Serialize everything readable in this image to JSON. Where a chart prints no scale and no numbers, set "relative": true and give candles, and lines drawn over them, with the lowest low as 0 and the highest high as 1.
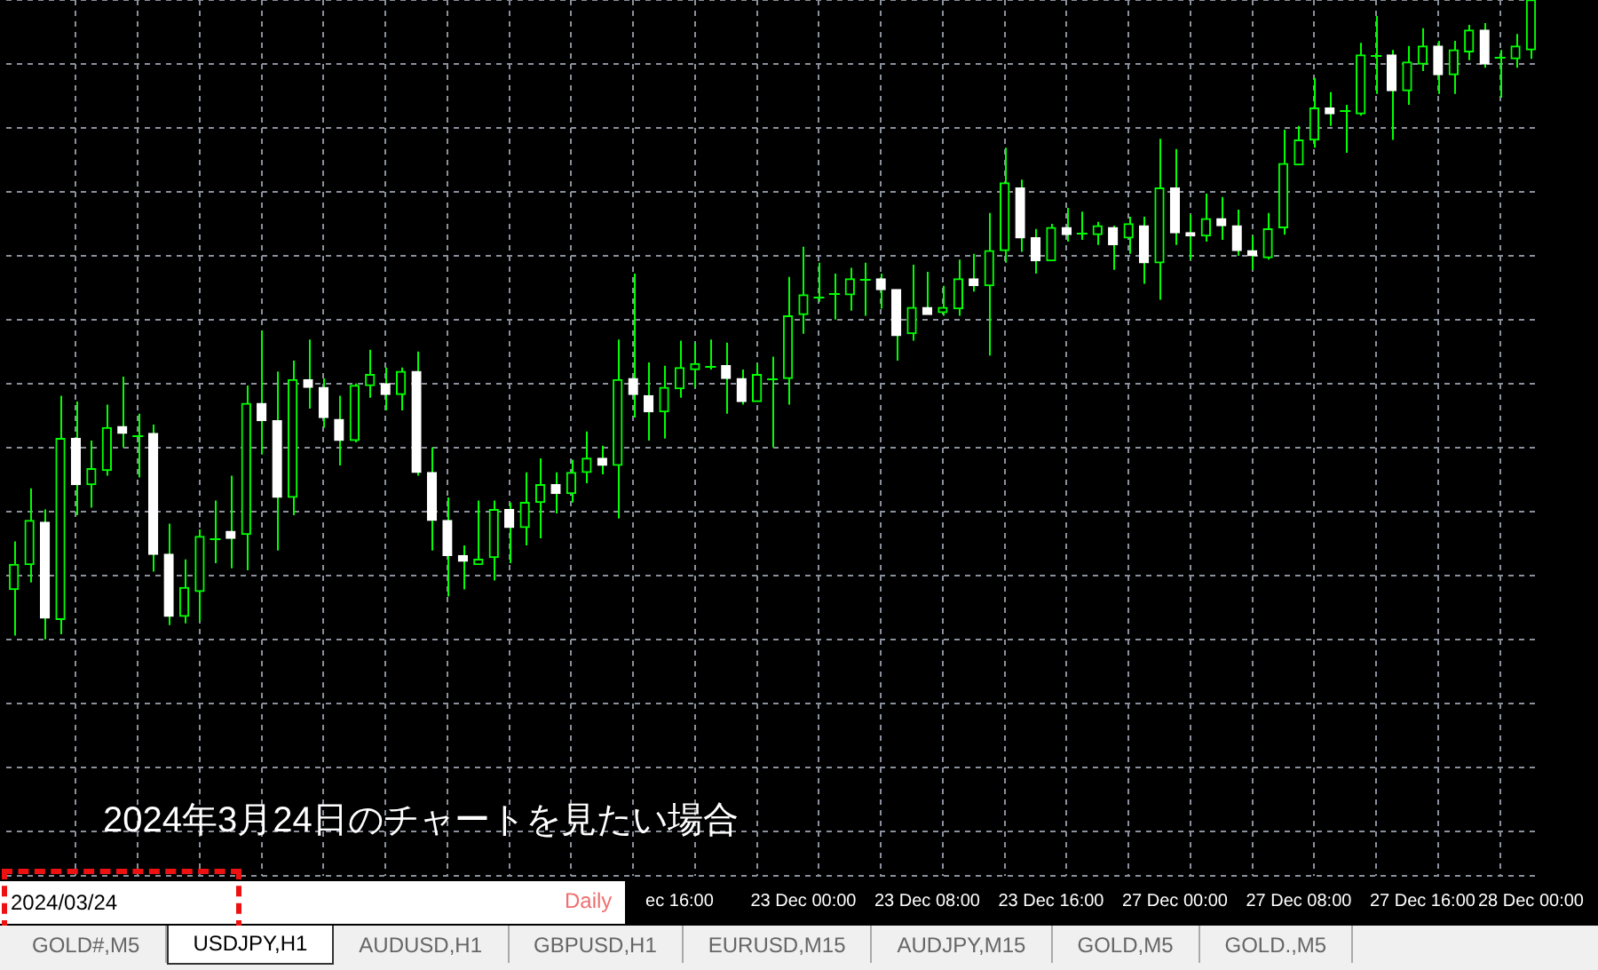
{
  "chart_data": {
    "type": "candlestick",
    "relative": true,
    "color": "#00ff00",
    "grid": true,
    "tick_labels": "x",
    "colors": [
      "#00ff00",
      "#00ff00",
      "#ffffff",
      "#00ff00",
      "#ffffff",
      "#00ff00",
      "#00ff00",
      "#ffffff",
      "#00ff00",
      "#ffffff",
      "#ffffff",
      "#00ff00",
      "#00ff00",
      "#00ff00",
      "#ffffff",
      "#00ff00",
      "#ffffff",
      "#ffffff",
      "#00ff00",
      "#ffffff",
      "#ffffff",
      "#ffffff",
      "#00ff00",
      "#00ff00",
      "#ffffff",
      "#00ff00",
      "#ffffff",
      "#ffffff",
      "#ffffff",
      "#ffffff",
      "#00ff00",
      "#00ff00",
      "#ffffff",
      "#00ff00",
      "#00ff00",
      "#ffffff",
      "#00ff00",
      "#00ff00",
      "#ffffff",
      "#00ff00",
      "#ffffff",
      "#ffffff",
      "#00ff00",
      "#00ff00",
      "#00ff00",
      "#00ff00",
      "#ffffff",
      "#ffffff",
      "#00ff00",
      "#00ff00",
      "#00ff00",
      "#00ff00",
      "#00ff00",
      "#00ff00",
      "#00ff00",
      "#00ff00",
      "#ffffff",
      "#ffffff",
      "#00ff00",
      "#ffffff",
      "#00ff00",
      "#00ff00",
      "#ffffff",
      "#00ff00",
      "#00ff00",
      "#ffffff",
      "#ffffff",
      "#00ff00",
      "#ffffff",
      "#00ff00",
      "#00ff00",
      "#ffffff",
      "#00ff00",
      "#ffffff",
      "#00ff00",
      "#ffffff",
      "#ffffff",
      "#00ff00",
      "#ffffff",
      "#ffffff",
      "#ffffff",
      "#00ff00",
      "#00ff00",
      "#00ff00",
      "#00ff00",
      "#ffffff",
      "#00ff00",
      "#00ff00",
      "#00ff00",
      "#ffffff",
      "#00ff00",
      "#00ff00",
      "#ffffff",
      "#00ff00",
      "#00ff00",
      "#ffffff",
      "#00ff00",
      "#00ff00",
      "#00ff00"
    ],
    "categories": [
      null,
      null,
      null,
      null,
      null,
      null,
      null,
      null,
      null,
      null,
      null,
      null,
      null,
      null,
      null,
      null,
      null,
      null,
      null,
      null,
      null,
      null,
      null,
      null,
      null,
      null,
      null,
      null,
      null,
      null,
      null,
      null,
      null,
      null,
      null,
      null,
      null,
      null,
      null,
      null,
      null,
      null,
      null,
      "ec 16:00",
      null,
      null,
      null,
      null,
      null,
      null,
      null,
      "23 Dec 00:00",
      null,
      null,
      null,
      null,
      null,
      null,
      null,
      "23 Dec 08:00",
      null,
      null,
      null,
      null,
      null,
      null,
      null,
      "23 Dec 16:00",
      null,
      null,
      null,
      null,
      null,
      null,
      null,
      "27 Dec 00:00",
      null,
      null,
      null,
      null,
      null,
      null,
      null,
      "27 Dec 08:00",
      null,
      null,
      null,
      null,
      null,
      null,
      null,
      "27 Dec 16:00",
      null,
      null,
      null,
      null,
      null,
      null,
      "28 Dec 00:00"
    ],
    "ohlc": [
      [
        0.078,
        0.153,
        0.006,
        0.117
      ],
      [
        0.117,
        0.236,
        0.089,
        0.186
      ],
      [
        0.183,
        0.203,
        0,
        0.033
      ],
      [
        0.031,
        0.381,
        0.008,
        0.314
      ],
      [
        0.314,
        0.372,
        0.194,
        0.242
      ],
      [
        0.242,
        0.311,
        0.206,
        0.267
      ],
      [
        0.264,
        0.367,
        0.256,
        0.331
      ],
      [
        0.333,
        0.411,
        0.3,
        0.322
      ],
      [
        0.319,
        0.353,
        0.253,
        0.319
      ],
      [
        0.322,
        0.336,
        0.106,
        0.133
      ],
      [
        0.133,
        0.181,
        0.022,
        0.036
      ],
      [
        0.036,
        0.125,
        0.025,
        0.081
      ],
      [
        0.075,
        0.172,
        0.028,
        0.161
      ],
      [
        0.158,
        0.217,
        0.119,
        0.158
      ],
      [
        0.169,
        0.256,
        0.111,
        0.158
      ],
      [
        0.164,
        0.397,
        0.108,
        0.369
      ],
      [
        0.369,
        0.483,
        0.289,
        0.342
      ],
      [
        0.342,
        0.419,
        0.139,
        0.222
      ],
      [
        0.222,
        0.436,
        0.194,
        0.406
      ],
      [
        0.406,
        0.469,
        0.361,
        0.394
      ],
      [
        0.394,
        0.408,
        0.331,
        0.347
      ],
      [
        0.344,
        0.381,
        0.272,
        0.311
      ],
      [
        0.311,
        0.4,
        0.308,
        0.397
      ],
      [
        0.397,
        0.453,
        0.378,
        0.414
      ],
      [
        0.4,
        0.425,
        0.358,
        0.383
      ],
      [
        0.383,
        0.425,
        0.358,
        0.419
      ],
      [
        0.419,
        0.45,
        0.256,
        0.261
      ],
      [
        0.261,
        0.3,
        0.139,
        0.186
      ],
      [
        0.186,
        0.222,
        0.067,
        0.131
      ],
      [
        0.131,
        0.147,
        0.078,
        0.122
      ],
      [
        0.117,
        0.217,
        0.117,
        0.125
      ],
      [
        0.128,
        0.217,
        0.092,
        0.203
      ],
      [
        0.203,
        0.214,
        0.119,
        0.175
      ],
      [
        0.175,
        0.261,
        0.147,
        0.214
      ],
      [
        0.214,
        0.283,
        0.158,
        0.242
      ],
      [
        0.242,
        0.261,
        0.197,
        0.228
      ],
      [
        0.228,
        0.281,
        0.214,
        0.261
      ],
      [
        0.261,
        0.325,
        0.244,
        0.283
      ],
      [
        0.283,
        0.303,
        0.258,
        0.272
      ],
      [
        0.272,
        0.469,
        0.189,
        0.406
      ],
      [
        0.408,
        0.572,
        0.347,
        0.383
      ],
      [
        0.381,
        0.433,
        0.311,
        0.356
      ],
      [
        0.356,
        0.428,
        0.314,
        0.394
      ],
      [
        0.392,
        0.467,
        0.378,
        0.425
      ],
      [
        0.422,
        0.464,
        0.394,
        0.431
      ],
      [
        0.428,
        0.469,
        0.422,
        0.428
      ],
      [
        0.428,
        0.464,
        0.353,
        0.408
      ],
      [
        0.408,
        0.422,
        0.367,
        0.372
      ],
      [
        0.372,
        0.431,
        0.372,
        0.414
      ],
      [
        0.408,
        0.442,
        0.3,
        0.408
      ],
      [
        0.408,
        0.567,
        0.367,
        0.506
      ],
      [
        0.508,
        0.614,
        0.478,
        0.539
      ],
      [
        0.536,
        0.589,
        0.528,
        0.536
      ],
      [
        0.542,
        0.572,
        0.5,
        0.542
      ],
      [
        0.539,
        0.581,
        0.514,
        0.564
      ],
      [
        0.564,
        0.589,
        0.506,
        0.564
      ],
      [
        0.564,
        0.572,
        0.517,
        0.547
      ],
      [
        0.547,
        0.547,
        0.436,
        0.475
      ],
      [
        0.478,
        0.586,
        0.467,
        0.519
      ],
      [
        0.519,
        0.575,
        0.508,
        0.508
      ],
      [
        0.511,
        0.553,
        0.506,
        0.519
      ],
      [
        0.517,
        0.594,
        0.506,
        0.564
      ],
      [
        0.564,
        0.603,
        0.544,
        0.553
      ],
      [
        0.553,
        0.667,
        0.444,
        0.608
      ],
      [
        0.608,
        0.769,
        0.589,
        0.714
      ],
      [
        0.706,
        0.719,
        0.606,
        0.628
      ],
      [
        0.628,
        0.642,
        0.572,
        0.592
      ],
      [
        0.592,
        0.65,
        0.592,
        0.644
      ],
      [
        0.644,
        0.675,
        0.622,
        0.633
      ],
      [
        0.636,
        0.669,
        0.625,
        0.636
      ],
      [
        0.633,
        0.653,
        0.617,
        0.647
      ],
      [
        0.644,
        0.647,
        0.578,
        0.617
      ],
      [
        0.628,
        0.661,
        0.603,
        0.65
      ],
      [
        0.647,
        0.661,
        0.556,
        0.589
      ],
      [
        0.589,
        0.783,
        0.531,
        0.706
      ],
      [
        0.706,
        0.767,
        0.617,
        0.636
      ],
      [
        0.636,
        0.664,
        0.594,
        0.631
      ],
      [
        0.631,
        0.697,
        0.622,
        0.658
      ],
      [
        0.658,
        0.692,
        0.625,
        0.647
      ],
      [
        0.647,
        0.672,
        0.6,
        0.608
      ],
      [
        0.608,
        0.631,
        0.578,
        0.6
      ],
      [
        0.597,
        0.667,
        0.594,
        0.642
      ],
      [
        0.644,
        0.797,
        0.633,
        0.744
      ],
      [
        0.742,
        0.803,
        0.742,
        0.781
      ],
      [
        0.781,
        0.878,
        0.769,
        0.831
      ],
      [
        0.831,
        0.856,
        0.803,
        0.822
      ],
      [
        0.828,
        0.836,
        0.761,
        0.828
      ],
      [
        0.822,
        0.933,
        0.819,
        0.914
      ],
      [
        0.914,
        0.975,
        0.853,
        0.914
      ],
      [
        0.914,
        0.922,
        0.781,
        0.858
      ],
      [
        0.858,
        0.928,
        0.836,
        0.903
      ],
      [
        0.9,
        0.956,
        0.889,
        0.928
      ],
      [
        0.928,
        0.936,
        0.853,
        0.883
      ],
      [
        0.883,
        0.936,
        0.853,
        0.922
      ],
      [
        0.919,
        0.961,
        0.906,
        0.953
      ],
      [
        0.953,
        0.964,
        0.894,
        0.9
      ],
      [
        0.911,
        0.922,
        0.847,
        0.911
      ],
      [
        0.908,
        0.947,
        0.894,
        0.928
      ],
      [
        0.922,
        1,
        0.908,
        1
      ]
    ],
    "annotations": [
      "2024年3月24日のチャートを見たい場合",
      "2024/03/24",
      "Daily",
      "GOLD#,M5",
      "USDJPY,H1",
      "AUDUSD,H1",
      "GBPUSD,H1",
      "EURUSD,M15",
      "AUDJPY,M15",
      "GOLD,M5",
      "GOLD.,M5"
    ]
  }
}
